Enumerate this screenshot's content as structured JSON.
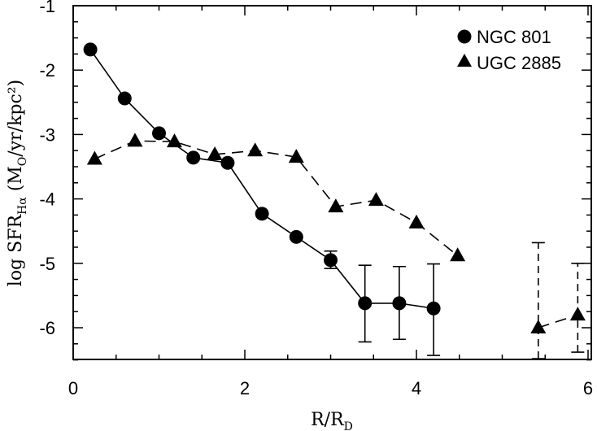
{
  "chart_data": {
    "type": "scatter",
    "xlabel": "R/R",
    "xlabel_sub": "D",
    "ylabel": "log SFR",
    "ylabel_sub": "Hα",
    "ylabel_units": "(M",
    "ylabel_units_sub": "O",
    "ylabel_units_tail": "/yr/kpc²)",
    "xlim": [
      0,
      6
    ],
    "ylim": [
      -6.5,
      -1
    ],
    "xticks": [
      0,
      2,
      4,
      6
    ],
    "xtick_labels": [
      "0",
      "2",
      "4",
      "6"
    ],
    "yticks": [
      -1,
      -2,
      -3,
      -4,
      -5,
      -6
    ],
    "ytick_labels": [
      "-1",
      "-2",
      "-3",
      "-4",
      "-5",
      "-6"
    ],
    "grid": false,
    "legend_position": "top-right",
    "series": [
      {
        "name": "NGC 801",
        "marker": "circle",
        "line": "solid",
        "color": "#000000",
        "points": [
          {
            "x": 0.2,
            "y": -1.68
          },
          {
            "x": 0.6,
            "y": -2.44
          },
          {
            "x": 1.0,
            "y": -2.98
          },
          {
            "x": 1.4,
            "y": -3.36
          },
          {
            "x": 1.8,
            "y": -3.44
          },
          {
            "x": 2.2,
            "y": -4.23
          },
          {
            "x": 2.6,
            "y": -4.59
          },
          {
            "x": 3.0,
            "y": -4.95,
            "err_lo": -5.08,
            "err_hi": -4.81
          },
          {
            "x": 3.4,
            "y": -5.62,
            "err_lo": -6.22,
            "err_hi": -5.03
          },
          {
            "x": 3.8,
            "y": -5.62,
            "err_lo": -6.18,
            "err_hi": -5.05
          },
          {
            "x": 4.2,
            "y": -5.7,
            "err_lo": -6.43,
            "err_hi": -5.01
          }
        ]
      },
      {
        "name": "UGC 2885",
        "marker": "triangle",
        "line": "dashed",
        "color": "#000000",
        "segments": [
          [
            {
              "x": 0.25,
              "y": -3.38
            },
            {
              "x": 0.72,
              "y": -3.1
            },
            {
              "x": 1.18,
              "y": -3.11
            },
            {
              "x": 1.65,
              "y": -3.31
            },
            {
              "x": 2.12,
              "y": -3.25
            },
            {
              "x": 2.6,
              "y": -3.35
            },
            {
              "x": 3.06,
              "y": -4.12
            },
            {
              "x": 3.53,
              "y": -4.02
            },
            {
              "x": 4.0,
              "y": -4.37
            },
            {
              "x": 4.48,
              "y": -4.88
            }
          ],
          [
            {
              "x": 5.42,
              "y": -6.0,
              "err_lo": -6.48,
              "err_hi": -4.68
            },
            {
              "x": 5.88,
              "y": -5.8,
              "err_lo": -6.38,
              "err_hi": -5.0
            }
          ]
        ]
      }
    ]
  }
}
